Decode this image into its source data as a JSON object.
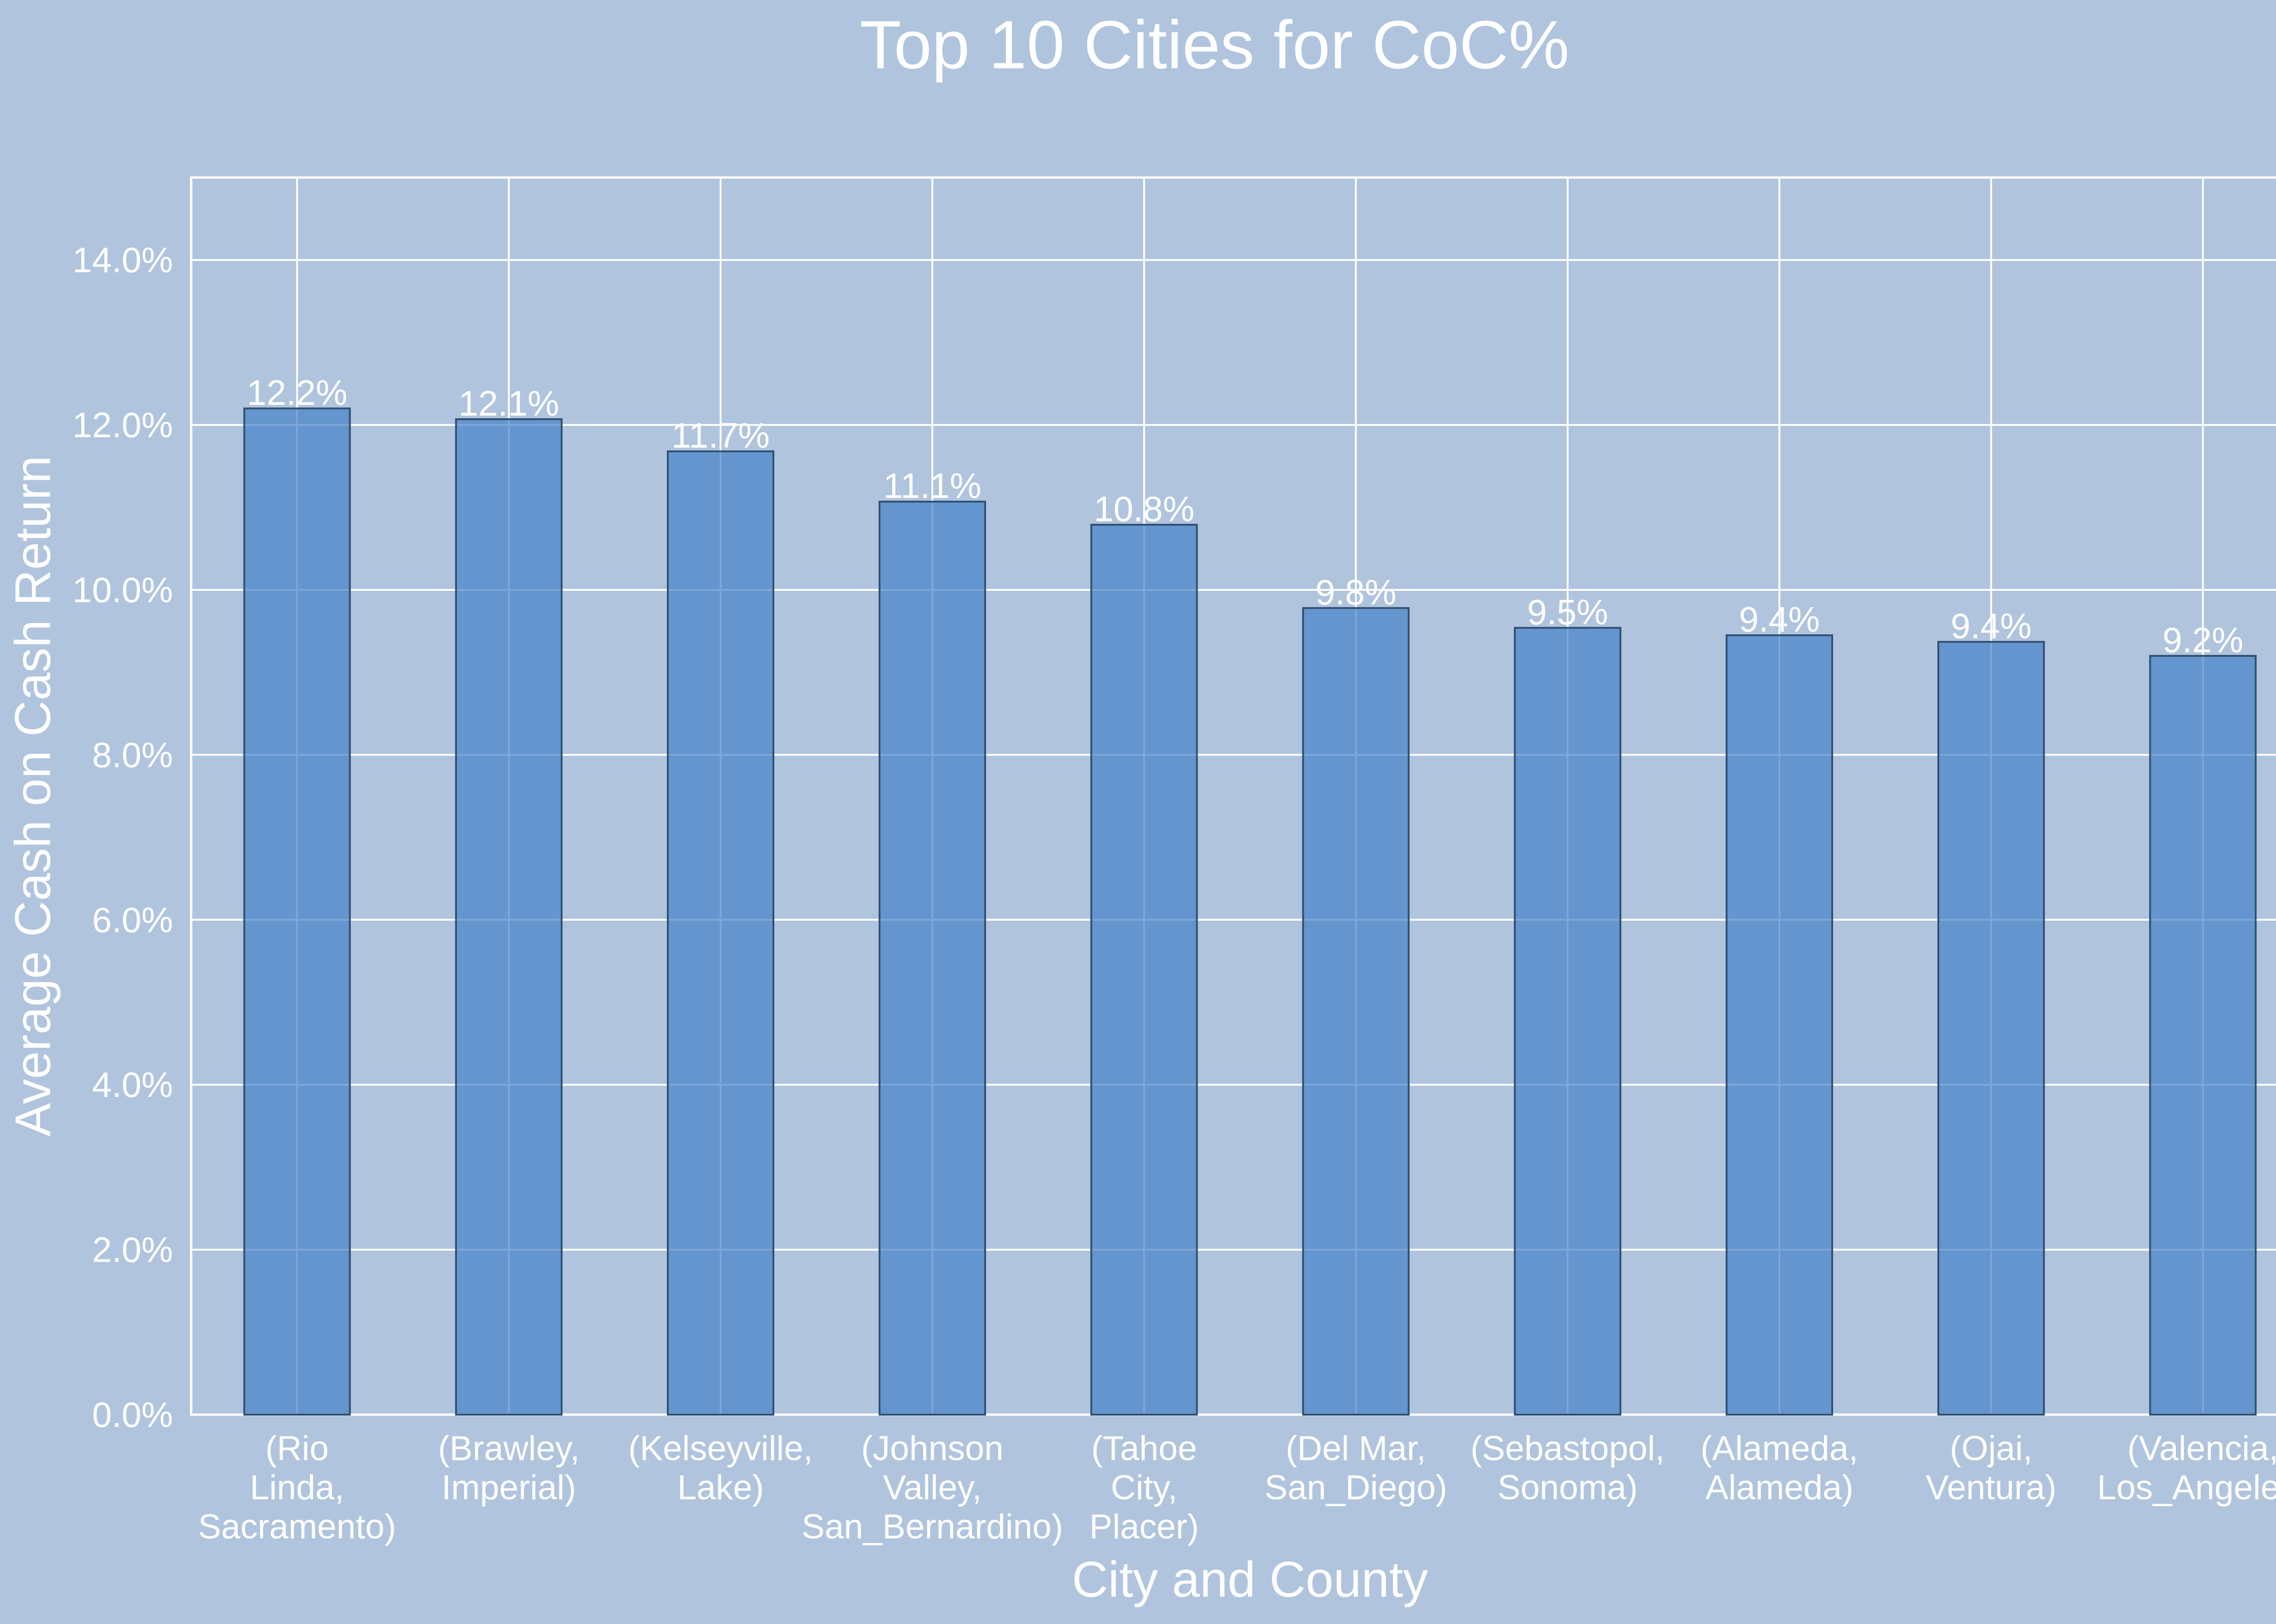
{
  "colors": {
    "background": "#b0c4de",
    "bar_fill": "#4682c8",
    "bar_stroke": "#2f4f6f",
    "grid": "#ffffff",
    "text": "#ffffff"
  },
  "chart_data": {
    "type": "bar",
    "title": "Top 10 Cities for CoC%",
    "xlabel": "City and County",
    "ylabel": "Average Cash on Cash Return",
    "ylim": [
      0,
      15
    ],
    "yticks": [
      0,
      2,
      4,
      6,
      8,
      10,
      12,
      14
    ],
    "ytick_labels": [
      "0.0%",
      "2.0%",
      "4.0%",
      "6.0%",
      "8.0%",
      "10.0%",
      "12.0%",
      "14.0%"
    ],
    "grid": true,
    "categories": [
      "(Rio Linda, Sacramento)",
      "(Brawley, Imperial)",
      "(Kelseyville, Lake)",
      "(Johnson Valley, San_Bernardino)",
      "(Tahoe City, Placer)",
      "(Del Mar, San_Diego)",
      "(Sebastopol, Sonoma)",
      "(Alameda, Alameda)",
      "(Ojai, Ventura)",
      "(Valencia, Los_Angeles)"
    ],
    "category_lines": [
      [
        "(Rio",
        "Linda,",
        "Sacramento)"
      ],
      [
        "(Brawley,",
        "Imperial)"
      ],
      [
        "(Kelseyville,",
        "Lake)"
      ],
      [
        "(Johnson",
        "Valley,",
        "San_Bernardino)"
      ],
      [
        "(Tahoe",
        "City,",
        "Placer)"
      ],
      [
        "(Del Mar,",
        "San_Diego)"
      ],
      [
        "(Sebastopol,",
        "Sonoma)"
      ],
      [
        "(Alameda,",
        "Alameda)"
      ],
      [
        "(Ojai,",
        "Ventura)"
      ],
      [
        "(Valencia,",
        "Los_Angeles)"
      ]
    ],
    "values": [
      12.2,
      12.07,
      11.68,
      11.07,
      10.79,
      9.78,
      9.54,
      9.45,
      9.37,
      9.2
    ],
    "value_labels": [
      "12.2%",
      "12.1%",
      "11.7%",
      "11.1%",
      "10.8%",
      "9.8%",
      "9.5%",
      "9.4%",
      "9.4%",
      "9.2%"
    ]
  }
}
